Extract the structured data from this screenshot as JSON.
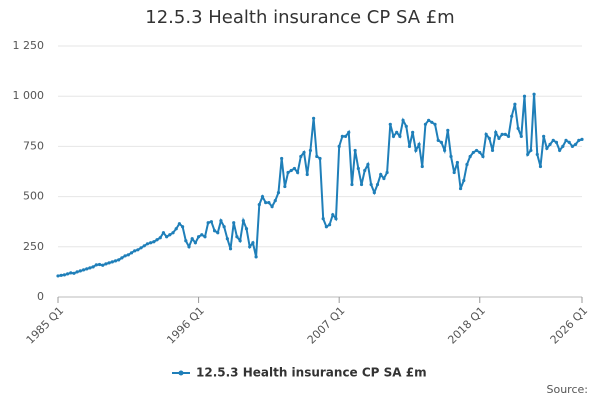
{
  "chart_data": {
    "type": "line",
    "title": "12.5.3 Health insurance CP SA £m",
    "source": "Source:",
    "categories": [
      "1985 Q1",
      null,
      null,
      null,
      null,
      null,
      null,
      null,
      null,
      null,
      null,
      null,
      null,
      null,
      null,
      null,
      null,
      null,
      null,
      null,
      null,
      null,
      null,
      null,
      null,
      null,
      null,
      null,
      null,
      null,
      null,
      null,
      null,
      null,
      null,
      null,
      null,
      null,
      null,
      null,
      null,
      null,
      null,
      null,
      "1996 Q1",
      null,
      null,
      null,
      null,
      null,
      null,
      null,
      null,
      null,
      null,
      null,
      null,
      null,
      null,
      null,
      null,
      null,
      null,
      null,
      null,
      null,
      null,
      null,
      null,
      null,
      null,
      null,
      null,
      null,
      null,
      null,
      null,
      null,
      null,
      null,
      null,
      null,
      null,
      null,
      null,
      null,
      null,
      null,
      "2007 Q1",
      null,
      null,
      null,
      null,
      null,
      null,
      null,
      null,
      null,
      null,
      null,
      null,
      null,
      null,
      null,
      null,
      null,
      null,
      null,
      null,
      null,
      null,
      null,
      null,
      null,
      null,
      null,
      null,
      null,
      null,
      null,
      null,
      null,
      null,
      null,
      null,
      null,
      null,
      null,
      null,
      null,
      null,
      null,
      "2018 Q1",
      null,
      null,
      null,
      null,
      null,
      null,
      null,
      null,
      null,
      null,
      null,
      null,
      null,
      null,
      null,
      null,
      null,
      null,
      null,
      null,
      null,
      null,
      null,
      null,
      null,
      null,
      null,
      null,
      null,
      null,
      null,
      "2026 Q1"
    ],
    "series": [
      {
        "name": "12.5.3 Health insurance CP SA £m",
        "color": "#1f7fb9",
        "values": [
          105,
          108,
          110,
          115,
          120,
          118,
          125,
          130,
          135,
          140,
          145,
          150,
          160,
          162,
          158,
          165,
          170,
          175,
          180,
          185,
          195,
          205,
          210,
          220,
          230,
          235,
          245,
          255,
          265,
          270,
          275,
          285,
          295,
          320,
          300,
          310,
          320,
          340,
          365,
          350,
          280,
          250,
          290,
          270,
          300,
          310,
          300,
          370,
          375,
          330,
          320,
          380,
          350,
          290,
          240,
          370,
          300,
          280,
          380,
          340,
          250,
          270,
          200,
          460,
          500,
          470,
          470,
          450,
          480,
          520,
          690,
          550,
          620,
          630,
          640,
          620,
          700,
          720,
          610,
          730,
          890,
          700,
          690,
          390,
          350,
          360,
          410,
          390,
          750,
          800,
          800,
          820,
          560,
          730,
          640,
          560,
          630,
          660,
          560,
          520,
          560,
          610,
          590,
          620,
          860,
          800,
          820,
          800,
          880,
          850,
          750,
          820,
          730,
          760,
          650,
          860,
          880,
          870,
          860,
          780,
          770,
          730,
          830,
          700,
          620,
          670,
          540,
          580,
          660,
          700,
          720,
          730,
          720,
          700,
          810,
          790,
          730,
          820,
          790,
          810,
          810,
          800,
          900,
          960,
          840,
          800,
          1000,
          710,
          730,
          1010,
          710,
          650,
          800,
          740,
          760,
          780,
          770,
          730,
          750,
          780,
          770,
          750,
          760,
          780,
          785
        ]
      }
    ],
    "ylim": [
      0,
      1250
    ],
    "yticks": [
      0,
      250,
      500,
      750,
      {
        "value": 1000,
        "label": "1 000"
      },
      {
        "value": 1250,
        "label": "1 250"
      }
    ],
    "grid": true
  }
}
